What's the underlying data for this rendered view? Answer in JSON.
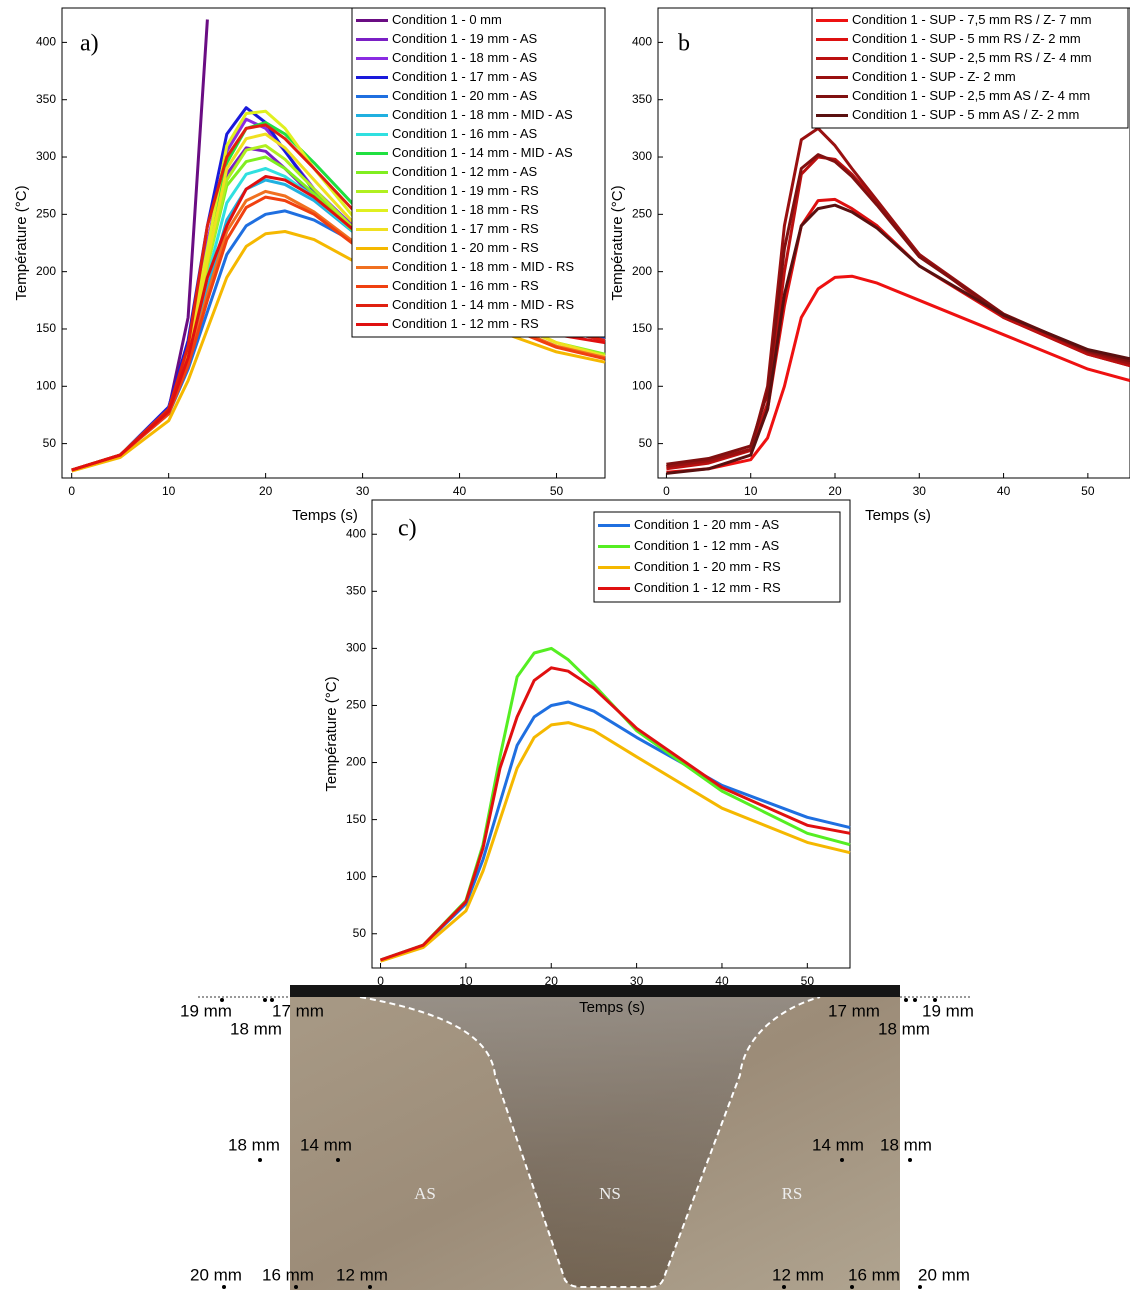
{
  "chart_data": [
    {
      "type": "line",
      "annotation": "a)",
      "x_label": "Temps (s)",
      "y_label": "Température (°C)",
      "xlim": [
        -1,
        55
      ],
      "ylim": [
        20,
        430
      ],
      "xticks": [
        0,
        10,
        20,
        30,
        40,
        50
      ],
      "yticks": [
        50,
        100,
        150,
        200,
        250,
        300,
        350,
        400
      ],
      "grid": false,
      "legend": "top-right",
      "x": [
        0,
        5,
        10,
        12,
        14,
        16,
        18,
        20,
        22,
        25,
        30,
        40,
        50,
        55
      ],
      "series": [
        {
          "name": "Condition 1 - 0 mm",
          "color": "#6a0d83",
          "values": [
            27,
            40,
            80,
            160,
            420,
            null,
            null,
            null,
            null,
            null,
            null,
            null,
            null,
            null
          ]
        },
        {
          "name": "Condition 1 - 19 mm - AS",
          "color": "#7a1fc4",
          "values": [
            27,
            40,
            80,
            130,
            210,
            285,
            308,
            305,
            290,
            265,
            228,
            180,
            150,
            140
          ]
        },
        {
          "name": "Condition 1 - 18 mm - AS",
          "color": "#8a2be2",
          "values": [
            27,
            40,
            80,
            135,
            225,
            305,
            333,
            325,
            305,
            272,
            232,
            182,
            152,
            142
          ]
        },
        {
          "name": "Condition 1 - 17 mm - AS",
          "color": "#1a1adb",
          "values": [
            27,
            40,
            82,
            140,
            240,
            320,
            343,
            330,
            305,
            270,
            230,
            180,
            150,
            140
          ]
        },
        {
          "name": "Condition 1 - 20 mm - AS",
          "color": "#1f6fe0",
          "values": [
            27,
            40,
            76,
            115,
            165,
            215,
            240,
            250,
            253,
            245,
            222,
            180,
            152,
            143
          ]
        },
        {
          "name": "Condition 1 - 18 mm - MID - AS",
          "color": "#20b0e0",
          "values": [
            27,
            40,
            78,
            122,
            185,
            245,
            272,
            280,
            276,
            262,
            228,
            180,
            150,
            140
          ]
        },
        {
          "name": "Condition 1 - 16 mm - AS",
          "color": "#30e0e0",
          "values": [
            27,
            40,
            78,
            125,
            195,
            260,
            285,
            290,
            283,
            265,
            228,
            180,
            150,
            140
          ]
        },
        {
          "name": "Condition 1 - 14 mm - MID - AS",
          "color": "#20e040",
          "values": [
            27,
            40,
            80,
            130,
            215,
            295,
            325,
            330,
            320,
            295,
            250,
            190,
            155,
            145
          ]
        },
        {
          "name": "Condition 1 - 12 mm - AS",
          "color": "#80ee20",
          "values": [
            27,
            40,
            79,
            128,
            205,
            275,
            296,
            300,
            290,
            268,
            228,
            175,
            138,
            128
          ]
        },
        {
          "name": "Condition 1 - 19 mm - RS",
          "color": "#b0f020",
          "values": [
            27,
            40,
            79,
            127,
            205,
            280,
            306,
            310,
            298,
            272,
            230,
            175,
            138,
            127
          ]
        },
        {
          "name": "Condition 1 - 18 mm - RS",
          "color": "#e0f020",
          "values": [
            27,
            40,
            80,
            132,
            220,
            310,
            338,
            340,
            325,
            290,
            238,
            178,
            138,
            126
          ]
        },
        {
          "name": "Condition 1 - 17 mm - RS",
          "color": "#f0e020",
          "values": [
            27,
            40,
            79,
            130,
            210,
            290,
            316,
            320,
            308,
            280,
            234,
            176,
            138,
            126
          ]
        },
        {
          "name": "Condition 1 - 20 mm - RS",
          "color": "#f5b800",
          "values": [
            26,
            38,
            70,
            105,
            150,
            195,
            222,
            233,
            235,
            228,
            205,
            160,
            130,
            121
          ]
        },
        {
          "name": "Condition 1 - 18 mm - MID - RS",
          "color": "#f07020",
          "values": [
            27,
            40,
            77,
            120,
            180,
            235,
            262,
            270,
            266,
            252,
            220,
            170,
            135,
            125
          ]
        },
        {
          "name": "Condition 1 - 16 mm - RS",
          "color": "#f04010",
          "values": [
            27,
            40,
            76,
            118,
            175,
            228,
            256,
            265,
            262,
            250,
            218,
            168,
            134,
            124
          ]
        },
        {
          "name": "Condition 1 - 14 mm - MID - RS",
          "color": "#e02010",
          "values": [
            27,
            40,
            80,
            135,
            240,
            300,
            325,
            328,
            316,
            290,
            245,
            185,
            150,
            140
          ]
        },
        {
          "name": "Condition 1 - 12 mm - RS",
          "color": "#e01010",
          "values": [
            27,
            40,
            78,
            125,
            195,
            240,
            272,
            283,
            280,
            265,
            230,
            178,
            145,
            138
          ]
        }
      ]
    },
    {
      "type": "line",
      "annotation": "b",
      "x_label": "Temps (s)",
      "y_label": "Température (°C)",
      "xlim": [
        -1,
        55
      ],
      "ylim": [
        20,
        430
      ],
      "xticks": [
        0,
        10,
        20,
        30,
        40,
        50
      ],
      "yticks": [
        50,
        100,
        150,
        200,
        250,
        300,
        350,
        400
      ],
      "grid": false,
      "legend": "top-right",
      "x": [
        0,
        5,
        10,
        12,
        14,
        16,
        18,
        20,
        22,
        25,
        30,
        40,
        50,
        55
      ],
      "series": [
        {
          "name": "Condition 1 - SUP - 7,5 mm RS / Z- 7 mm",
          "color": "#ee1111",
          "values": [
            25,
            28,
            36,
            55,
            100,
            160,
            185,
            195,
            196,
            190,
            175,
            145,
            115,
            105
          ]
        },
        {
          "name": "Condition 1 - SUP - 5 mm RS / Z- 2 mm",
          "color": "#dd1010",
          "values": [
            30,
            35,
            45,
            80,
            170,
            240,
            262,
            263,
            255,
            240,
            205,
            160,
            128,
            118
          ]
        },
        {
          "name": "Condition 1 - SUP - 2,5 mm RS / Z- 4 mm",
          "color": "#bb1010",
          "values": [
            28,
            33,
            44,
            85,
            200,
            285,
            300,
            298,
            285,
            260,
            215,
            160,
            128,
            118
          ]
        },
        {
          "name": "Condition 1 - SUP - Z- 2 mm",
          "color": "#991010",
          "values": [
            30,
            35,
            45,
            100,
            240,
            315,
            325,
            310,
            290,
            262,
            215,
            163,
            130,
            120
          ]
        },
        {
          "name": "Condition 1 - SUP - 2,5 mm AS / Z- 4 mm",
          "color": "#801010",
          "values": [
            32,
            37,
            48,
            95,
            220,
            290,
            302,
            296,
            283,
            258,
            213,
            163,
            131,
            122
          ]
        },
        {
          "name": "Condition 1 - SUP - 5 mm AS / Z- 2 mm",
          "color": "#5a1010",
          "values": [
            24,
            28,
            40,
            80,
            180,
            240,
            255,
            258,
            252,
            238,
            205,
            162,
            132,
            124
          ]
        }
      ]
    },
    {
      "type": "line",
      "annotation": "c)",
      "x_label": "Temps (s)",
      "y_label": "Température (°C)",
      "xlim": [
        -1,
        55
      ],
      "ylim": [
        20,
        430
      ],
      "xticks": [
        0,
        10,
        20,
        30,
        40,
        50
      ],
      "yticks": [
        50,
        100,
        150,
        200,
        250,
        300,
        350,
        400
      ],
      "grid": false,
      "legend": "top-right",
      "x": [
        0,
        5,
        10,
        12,
        14,
        16,
        18,
        20,
        22,
        25,
        30,
        40,
        50,
        55
      ],
      "series": [
        {
          "name": "Condition 1 - 20 mm - AS",
          "color": "#1f6fe0",
          "values": [
            27,
            40,
            76,
            115,
            165,
            215,
            240,
            250,
            253,
            245,
            222,
            180,
            152,
            143
          ]
        },
        {
          "name": "Condition 1 - 12 mm - AS",
          "color": "#55ee22",
          "values": [
            27,
            40,
            79,
            128,
            205,
            275,
            296,
            300,
            290,
            268,
            228,
            175,
            138,
            128
          ]
        },
        {
          "name": "Condition 1 - 20 mm - RS",
          "color": "#f5b800",
          "values": [
            26,
            38,
            70,
            105,
            150,
            195,
            222,
            233,
            235,
            228,
            205,
            160,
            130,
            121
          ]
        },
        {
          "name": "Condition 1 - 12 mm - RS",
          "color": "#e01010",
          "values": [
            27,
            40,
            78,
            125,
            195,
            240,
            272,
            283,
            280,
            265,
            230,
            178,
            145,
            138
          ]
        }
      ]
    }
  ],
  "micrograph": {
    "labels": [
      "19 mm",
      "17 mm",
      "18 mm",
      "18 mm",
      "14 mm",
      "20 mm",
      "16 mm",
      "12 mm",
      "17 mm",
      "19 mm",
      "18 mm",
      "14 mm",
      "18 mm",
      "12 mm",
      "16 mm",
      "20 mm"
    ],
    "regions": [
      "AS",
      "NS",
      "RS"
    ]
  }
}
